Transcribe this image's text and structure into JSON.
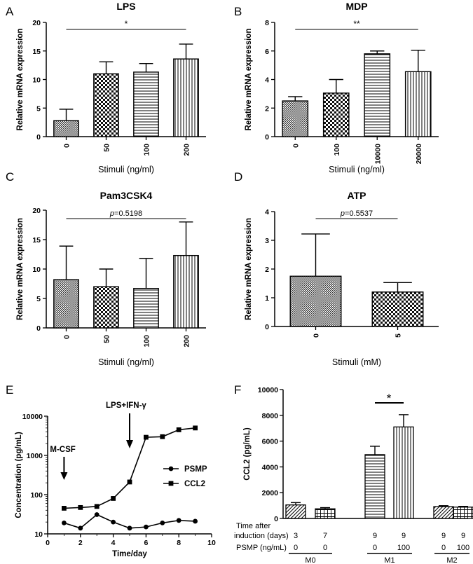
{
  "chart_data": [
    {
      "panel": "A",
      "type": "bar",
      "title": "LPS",
      "xlabel": "Stimuli (ng/ml)",
      "ylabel": "Relative mRNA expression",
      "categories": [
        "0",
        "50",
        "100",
        "200"
      ],
      "values": [
        2.8,
        11.0,
        11.3,
        13.6
      ],
      "errors": [
        2.0,
        2.1,
        1.5,
        2.6
      ],
      "ylim": [
        0,
        20
      ],
      "yticks": [
        "0",
        "5",
        "10",
        "15",
        "20"
      ],
      "significance": "*"
    },
    {
      "panel": "B",
      "type": "bar",
      "title": "MDP",
      "xlabel": "Stimuli (ng/ml)",
      "ylabel": "Relative mRNA expression",
      "categories": [
        "0",
        "100",
        "10000",
        "20000"
      ],
      "values": [
        2.5,
        3.05,
        5.8,
        4.55
      ],
      "errors": [
        0.3,
        0.95,
        0.2,
        1.5
      ],
      "ylim": [
        0,
        8
      ],
      "yticks": [
        "0",
        "2",
        "4",
        "6",
        "8"
      ],
      "significance": "**"
    },
    {
      "panel": "C",
      "type": "bar",
      "title": "Pam3CSK4",
      "xlabel": "Stimuli (ng/ml)",
      "ylabel": "Relative mRNA expression",
      "categories": [
        "0",
        "50",
        "100",
        "200"
      ],
      "values": [
        8.2,
        7.0,
        6.7,
        12.3
      ],
      "errors": [
        5.7,
        3.0,
        5.1,
        5.7
      ],
      "ylim": [
        0,
        20
      ],
      "yticks": [
        "0",
        "5",
        "10",
        "15",
        "20"
      ],
      "p_prefix": "p",
      "p_value": "=0.5198"
    },
    {
      "panel": "D",
      "type": "bar",
      "title": "ATP",
      "xlabel": "Stimuli (mM)",
      "ylabel": "Relative mRNA expression",
      "categories": [
        "0",
        "5"
      ],
      "values": [
        1.75,
        1.2
      ],
      "errors": [
        1.47,
        0.33
      ],
      "ylim": [
        0,
        4
      ],
      "yticks": [
        "0",
        "1",
        "2",
        "3",
        "4"
      ],
      "p_prefix": "p",
      "p_value": "=0.5537"
    },
    {
      "panel": "E",
      "type": "line",
      "yscale": "log",
      "xlabel": "Time/day",
      "ylabel": "Concentration (pg/mL)",
      "xlim": [
        0,
        10
      ],
      "ylim": [
        10,
        10000
      ],
      "xticks": [
        "0",
        "2",
        "4",
        "6",
        "8",
        "10"
      ],
      "yticks": [
        "10",
        "100",
        "1000",
        "10000"
      ],
      "series": [
        {
          "name": "PSMP",
          "marker": "circle",
          "x": [
            1,
            2,
            3,
            4,
            5,
            6,
            7,
            8,
            9
          ],
          "values": [
            19,
            14,
            31,
            20,
            14,
            15,
            19,
            22,
            21
          ]
        },
        {
          "name": "CCL2",
          "marker": "square",
          "x": [
            1,
            2,
            3,
            4,
            5,
            6,
            7,
            8,
            9
          ],
          "values": [
            45,
            47,
            50,
            80,
            210,
            2900,
            3000,
            4500,
            5000
          ]
        }
      ],
      "annotations": [
        {
          "text": "M-CSF",
          "x": 1
        },
        {
          "text": "LPS+IFN-γ",
          "x": 5
        }
      ]
    },
    {
      "panel": "F",
      "type": "bar",
      "ylabel": "CCL2 (pg/mL)",
      "ylim": [
        0,
        10000
      ],
      "yticks": [
        "0",
        "2000",
        "4000",
        "6000",
        "8000",
        "10000"
      ],
      "row_labels": [
        "Time after",
        "induction (days)",
        "PSMP (ng/mL)"
      ],
      "days": [
        "3",
        "7",
        "9",
        "9",
        "9",
        "9"
      ],
      "psmp": [
        "0",
        "0",
        "0",
        "100",
        "0",
        "100"
      ],
      "values": [
        1050,
        750,
        4950,
        7100,
        920,
        880
      ],
      "errors": [
        180,
        90,
        650,
        950,
        70,
        60
      ],
      "groups": [
        "M0",
        "M1",
        "M2"
      ],
      "significance": "*"
    }
  ],
  "panel_letters": [
    "A",
    "B",
    "C",
    "D",
    "E",
    "F"
  ]
}
